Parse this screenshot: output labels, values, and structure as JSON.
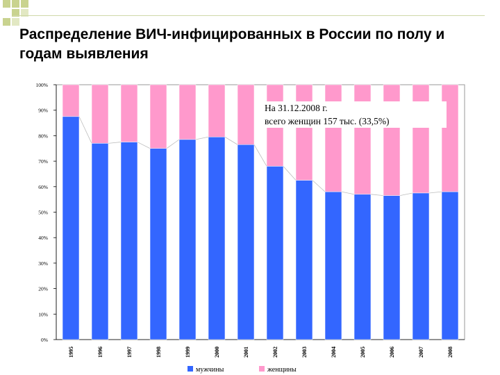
{
  "slide": {
    "title": "Распределение ВИЧ-инфицированных в России  по полу и годам выявления",
    "note_line1": "На 31.12.2008 г.",
    "note_line2": "всего женщин 157 тыс. (33,5%)"
  },
  "colors": {
    "men": "#3366ff",
    "women": "#ff99cc",
    "deco": "#c9d38f"
  },
  "chart_data": {
    "type": "bar",
    "stacked": true,
    "normalized": true,
    "categories": [
      "1995",
      "1996",
      "1997",
      "1998",
      "1999",
      "2000",
      "2001",
      "2002",
      "2003",
      "2004",
      "2005",
      "2006",
      "2007",
      "2008"
    ],
    "series": [
      {
        "name": "мужчины",
        "color": "#3366ff",
        "values": [
          87.5,
          77,
          77.5,
          75,
          78.5,
          79.5,
          76.5,
          68,
          62.5,
          58,
          57,
          56.5,
          57.5,
          58
        ]
      },
      {
        "name": "женщины",
        "color": "#ff99cc",
        "values": [
          12.5,
          23,
          22.5,
          25,
          21.5,
          20.5,
          23.5,
          32,
          37.5,
          42,
          43,
          43.5,
          42.5,
          42
        ]
      }
    ],
    "ylim": [
      0,
      100
    ],
    "yticks": [
      "0%",
      "10%",
      "20%",
      "30%",
      "40%",
      "50%",
      "60%",
      "70%",
      "80%",
      "90%",
      "100%"
    ],
    "series_lines": true,
    "grid": false,
    "legend": "bottom"
  }
}
